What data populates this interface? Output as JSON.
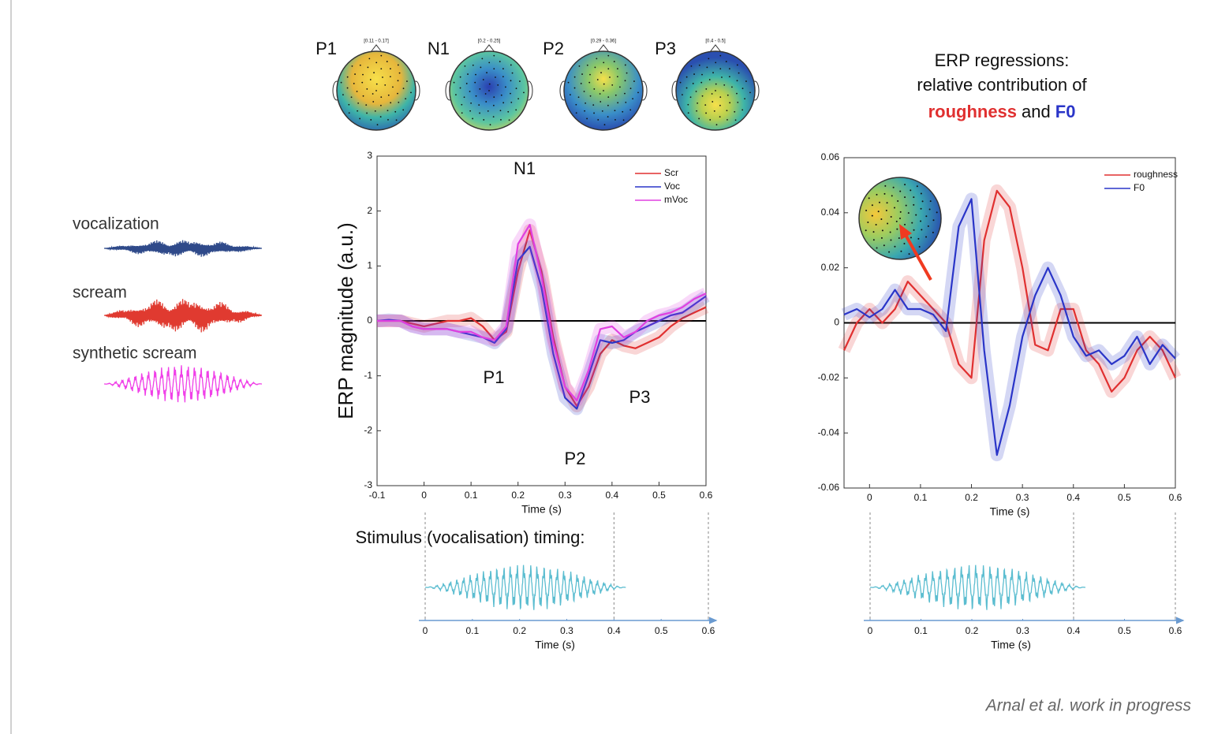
{
  "chart_data": [
    {
      "type": "line",
      "xlabel": "Time (s)",
      "ylabel": "ERP magnitude (a.u.)",
      "x": [
        -0.1,
        -0.075,
        -0.05,
        -0.025,
        0,
        0.025,
        0.05,
        0.075,
        0.1,
        0.125,
        0.15,
        0.175,
        0.2,
        0.225,
        0.25,
        0.275,
        0.3,
        0.325,
        0.35,
        0.375,
        0.4,
        0.425,
        0.45,
        0.475,
        0.5,
        0.525,
        0.55,
        0.575,
        0.6
      ],
      "series": [
        {
          "name": "Scr",
          "color": "#e03030",
          "values": [
            0,
            0,
            0,
            -0.05,
            -0.1,
            -0.05,
            0,
            0,
            0.05,
            -0.1,
            -0.35,
            -0.2,
            0.9,
            1.65,
            0.9,
            -0.3,
            -1.2,
            -1.55,
            -1.2,
            -0.6,
            -0.35,
            -0.45,
            -0.5,
            -0.4,
            -0.3,
            -0.1,
            0.05,
            0.15,
            0.25
          ]
        },
        {
          "name": "Voc",
          "color": "#2a35c8",
          "values": [
            0,
            0.02,
            0,
            -0.1,
            -0.15,
            -0.15,
            -0.15,
            -0.2,
            -0.25,
            -0.3,
            -0.4,
            -0.15,
            1.1,
            1.35,
            0.6,
            -0.6,
            -1.4,
            -1.6,
            -1.0,
            -0.35,
            -0.4,
            -0.35,
            -0.2,
            -0.1,
            0,
            0.1,
            0.15,
            0.3,
            0.45
          ]
        },
        {
          "name": "mVoc",
          "color": "#e040e0",
          "values": [
            0,
            0,
            0,
            -0.1,
            -0.15,
            -0.15,
            -0.15,
            -0.2,
            -0.2,
            -0.3,
            -0.35,
            -0.1,
            1.4,
            1.75,
            0.8,
            -0.4,
            -1.2,
            -1.45,
            -0.9,
            -0.15,
            -0.1,
            -0.3,
            -0.2,
            0,
            0.1,
            0.15,
            0.25,
            0.4,
            0.5
          ]
        }
      ],
      "xlim": [
        -0.1,
        0.6
      ],
      "ylim": [
        -3,
        3
      ],
      "xticks": [
        -0.1,
        0,
        0.1,
        0.2,
        0.3,
        0.4,
        0.5,
        0.6
      ],
      "yticks": [
        -3,
        -2,
        -1,
        0,
        1,
        2,
        3
      ],
      "legend": "upper right",
      "annotations": [
        "N1",
        "P1",
        "P2",
        "P3"
      ],
      "topomaps": [
        {
          "label": "P1",
          "window": "[0.11 - 0.17]"
        },
        {
          "label": "N1",
          "window": "[0.2 - 0.25]"
        },
        {
          "label": "P2",
          "window": "[0.29 - 0.36]"
        },
        {
          "label": "P3",
          "window": "[0.4 - 0.5]"
        }
      ]
    },
    {
      "type": "line",
      "title": {
        "lines": [
          "ERP regressions:",
          "relative contribution of"
        ],
        "highlight": [
          "roughness",
          "and",
          "F0"
        ]
      },
      "xlabel": "Time (s)",
      "x": [
        -0.05,
        -0.025,
        0,
        0.025,
        0.05,
        0.075,
        0.1,
        0.125,
        0.15,
        0.175,
        0.2,
        0.225,
        0.25,
        0.275,
        0.3,
        0.325,
        0.35,
        0.375,
        0.4,
        0.425,
        0.45,
        0.475,
        0.5,
        0.525,
        0.55,
        0.575,
        0.6
      ],
      "series": [
        {
          "name": "roughness",
          "color": "#e03030",
          "values": [
            -0.01,
            0,
            0.005,
            0,
            0.005,
            0.015,
            0.01,
            0.005,
            0,
            -0.015,
            -0.02,
            0.03,
            0.048,
            0.042,
            0.02,
            -0.008,
            -0.01,
            0.005,
            0.005,
            -0.01,
            -0.015,
            -0.025,
            -0.02,
            -0.01,
            -0.005,
            -0.01,
            -0.02
          ]
        },
        {
          "name": "F0",
          "color": "#2a35c8",
          "values": [
            0.003,
            0.005,
            0.002,
            0.005,
            0.012,
            0.005,
            0.005,
            0.003,
            -0.003,
            0.035,
            0.045,
            -0.01,
            -0.048,
            -0.03,
            -0.005,
            0.01,
            0.02,
            0.01,
            -0.005,
            -0.012,
            -0.01,
            -0.015,
            -0.012,
            -0.005,
            -0.015,
            -0.008,
            -0.013
          ]
        }
      ],
      "xlim": [
        -0.05,
        0.6
      ],
      "ylim": [
        -0.06,
        0.06
      ],
      "xticks": [
        0,
        0.1,
        0.2,
        0.3,
        0.4,
        0.5,
        0.6
      ],
      "yticks": [
        -0.06,
        -0.04,
        -0.02,
        0,
        0.02,
        0.04,
        0.06
      ],
      "legend": "upper right"
    },
    {
      "type": "timeline",
      "title": "Stimulus (vocalisation) timing:",
      "xlabel": "Time (s)",
      "xlim": [
        0,
        0.6
      ],
      "xticks": [
        0,
        0.1,
        0.2,
        0.3,
        0.4,
        0.5,
        0.6
      ],
      "stimulus_window": [
        0,
        0.4
      ],
      "color": "#5bbdd0"
    },
    {
      "type": "timeline",
      "xlabel": "Time (s)",
      "xlim": [
        0,
        0.6
      ],
      "xticks": [
        0,
        0.1,
        0.2,
        0.3,
        0.4,
        0.5,
        0.6
      ],
      "stimulus_window": [
        0,
        0.4
      ],
      "color": "#5bbdd0"
    }
  ],
  "stimuli": [
    {
      "name": "vocalization",
      "color": "#2f4a8a"
    },
    {
      "name": "scream",
      "color": "#e03a30"
    },
    {
      "name": "synthetic scream",
      "color": "#f040e8"
    }
  ],
  "citation": "Arnal et al. work in progress"
}
